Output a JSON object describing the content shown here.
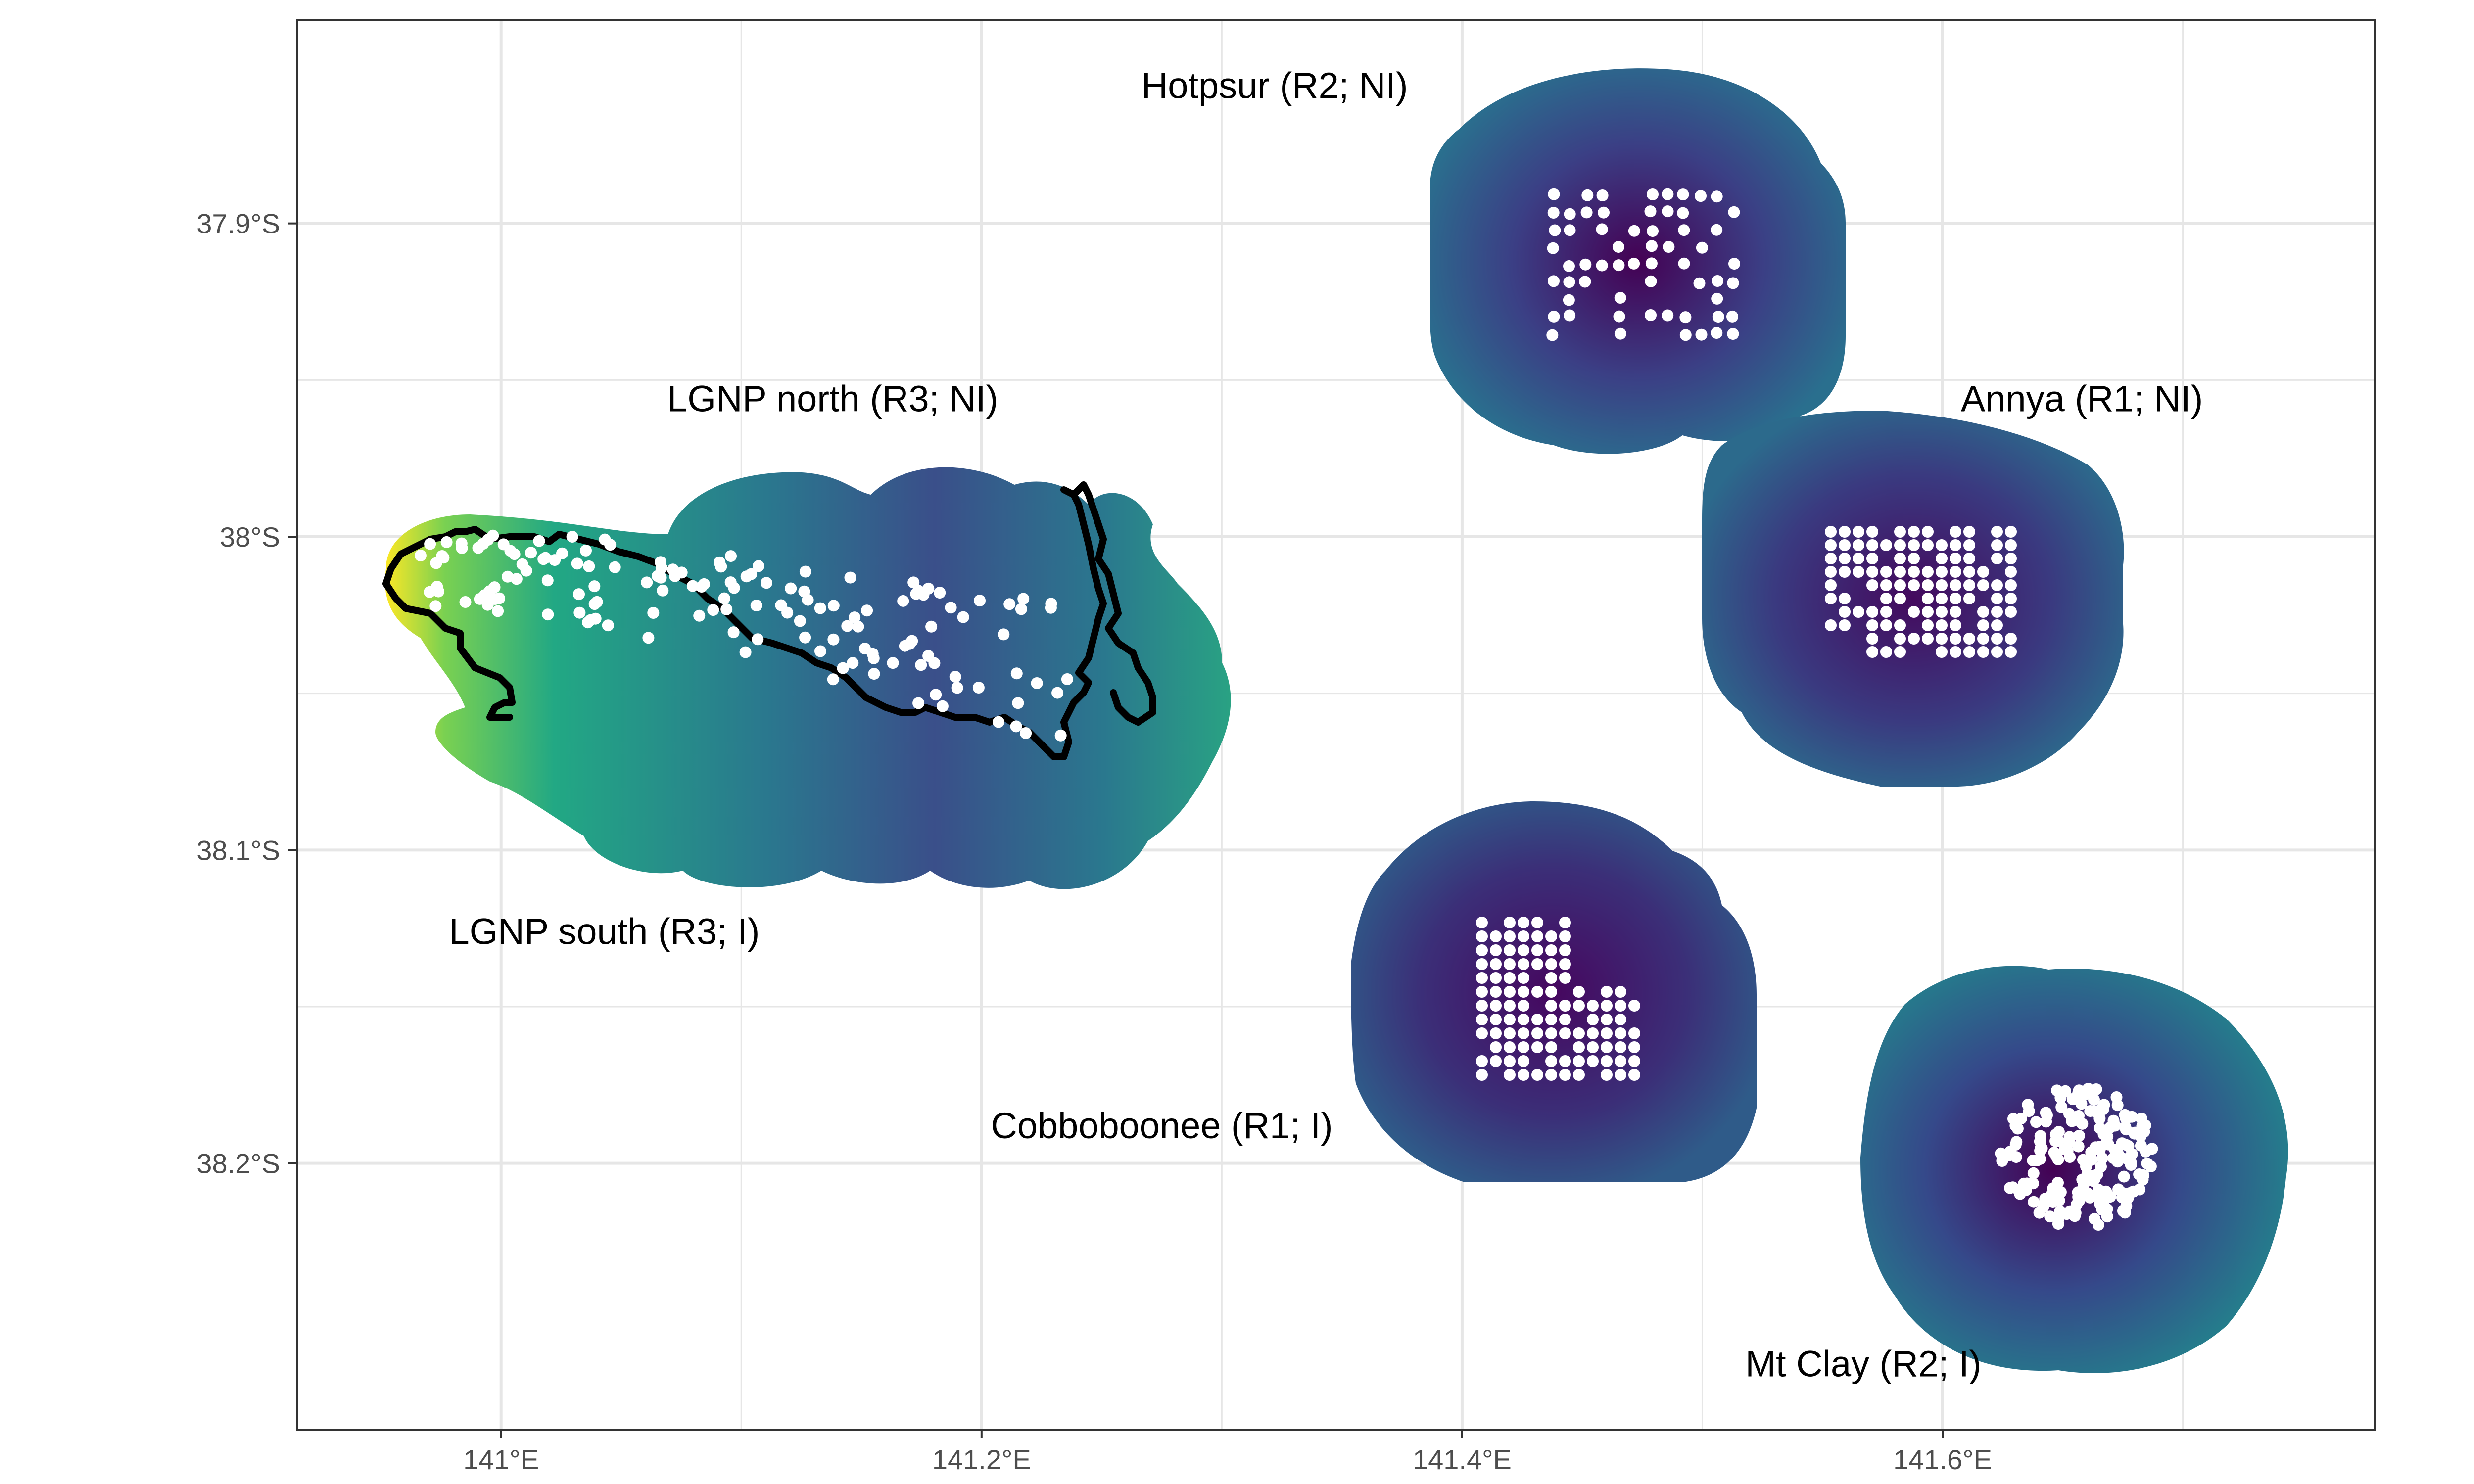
{
  "map": {
    "colors": {
      "background": "#ffffff",
      "gridline": "#e6e6e6",
      "panel_border": "#333333",
      "points": "#ffffff",
      "boundary": "#000000",
      "viridis": [
        "#440154",
        "#3b528b",
        "#21918c",
        "#5ec962",
        "#fde725"
      ]
    },
    "x_ticks": [
      {
        "lon": 141.0,
        "label": "141°E"
      },
      {
        "lon": 141.2,
        "label": "141.2°E"
      },
      {
        "lon": 141.4,
        "label": "141.4°E"
      },
      {
        "lon": 141.6,
        "label": "141.6°E"
      }
    ],
    "y_ticks": [
      {
        "lat": -37.9,
        "label": "37.9°S"
      },
      {
        "lat": -38.0,
        "label": "38°S"
      },
      {
        "lat": -38.1,
        "label": "38.1°S"
      },
      {
        "lat": -38.2,
        "label": "38.2°S"
      }
    ],
    "lon_range": [
      140.915,
      141.78
    ],
    "lat_range": [
      -38.285,
      -37.835
    ],
    "regions": [
      {
        "label": "Hotpsur (R2; NI)",
        "label_lon": 141.322,
        "label_lat": -37.86,
        "center_lon": 141.47,
        "center_lat": -37.905,
        "intensity": 0.3
      },
      {
        "label": "Annya (R1; NI)",
        "label_lon": 141.658,
        "label_lat": -37.96,
        "center_lon": 141.61,
        "center_lat": -38.01,
        "intensity": 0.15
      },
      {
        "label": "LGNP north (R3; NI)",
        "label_lon": 141.138,
        "label_lat": -37.96,
        "center_lon": 141.17,
        "center_lat": -38.04,
        "intensity": 0.45
      },
      {
        "label": "LGNP south (R3; I)",
        "label_lon": 141.043,
        "label_lat": -38.13,
        "center_lon": 141.05,
        "center_lat": -38.02,
        "intensity": 0.75
      },
      {
        "label": "Cobboboonee (R1; I)",
        "label_lon": 141.275,
        "label_lat": -38.192,
        "center_lon": 141.44,
        "center_lat": -38.16,
        "intensity": 0.2
      },
      {
        "label": "Mt Clay (R2; I)",
        "label_lon": 141.567,
        "label_lat": -38.268,
        "center_lon": 141.665,
        "center_lat": -38.205,
        "intensity": 0.35
      }
    ]
  }
}
